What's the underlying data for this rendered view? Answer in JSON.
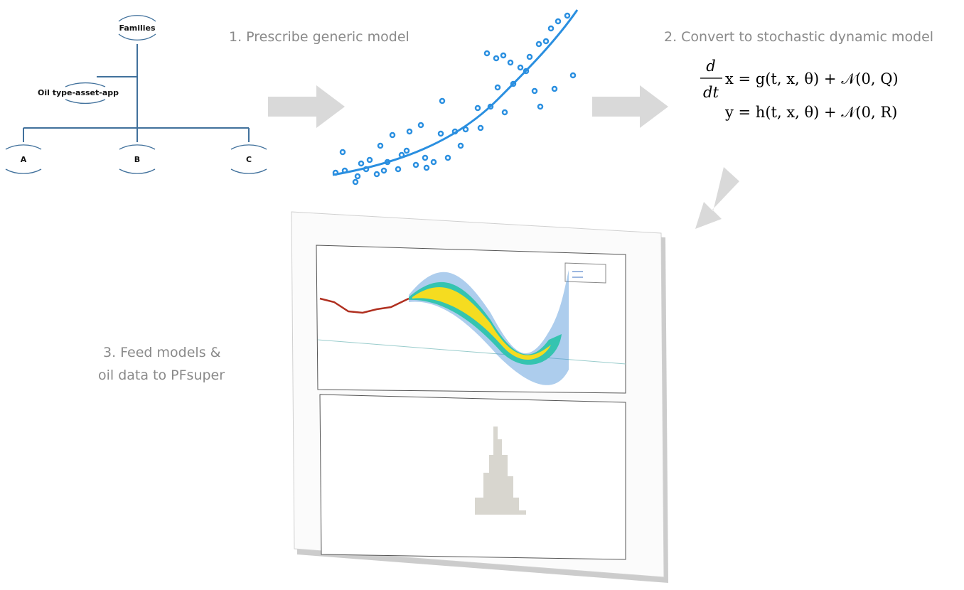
{
  "tree": {
    "root": "Families",
    "branch": "Oil type-asset-app",
    "leaves": [
      "A",
      "B",
      "C"
    ]
  },
  "steps": [
    "1. Prescribe generic model",
    "2. Convert to stochastic dynamic model",
    "3. Feed models &",
    "oil data to PFsuper"
  ],
  "equations": {
    "numerator": "d",
    "denominator": "dt",
    "line1": "x = g(t, x, θ) + 𝒩(0, Q)",
    "line2": "y = h(t, x, θ) + 𝒩(0, R)"
  }
}
